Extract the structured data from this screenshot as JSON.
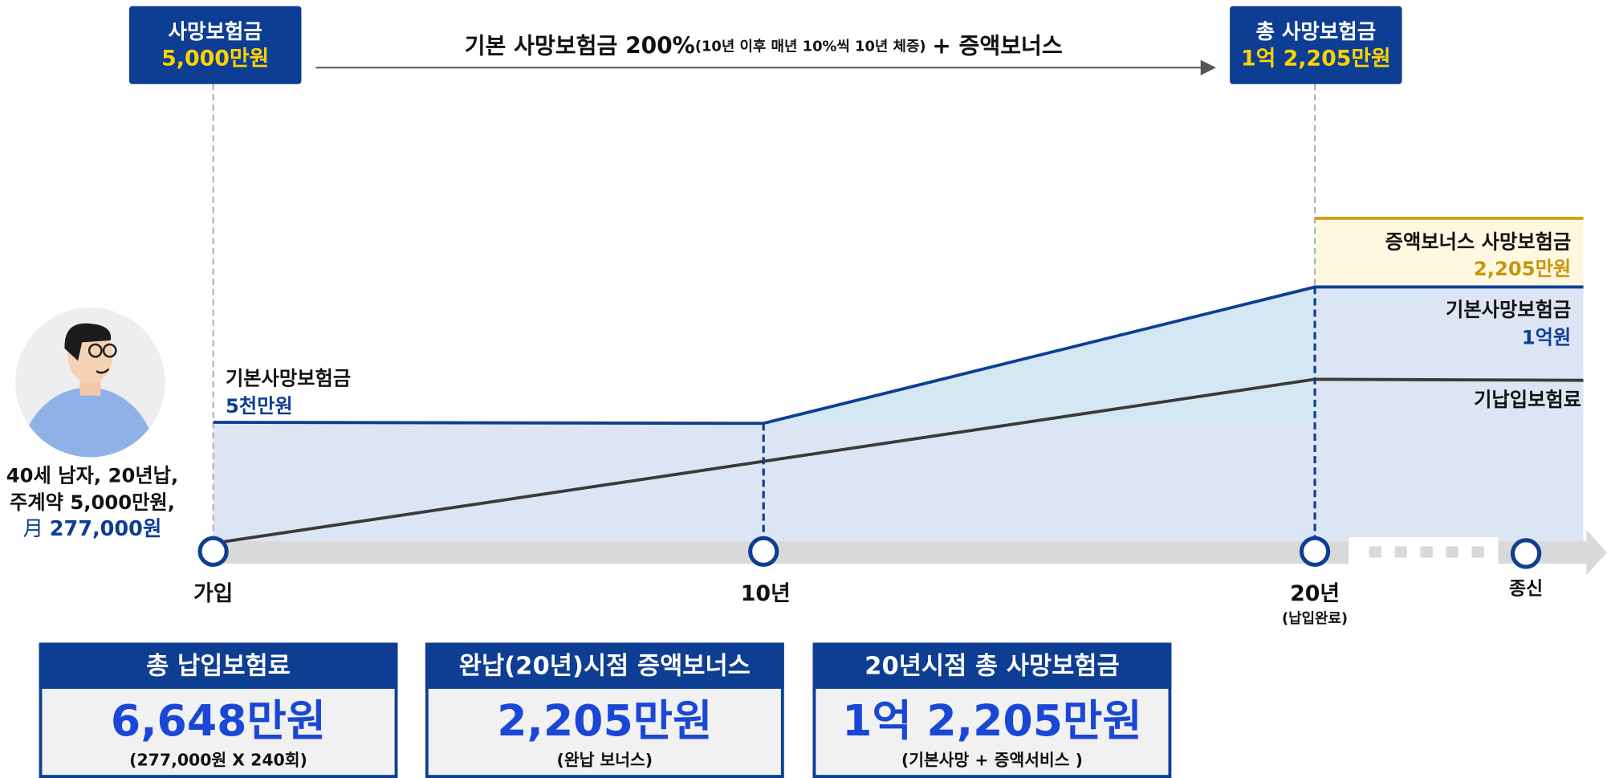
{
  "top_left_badge": {
    "label": "사망보험금",
    "amount": "5,000만원"
  },
  "top_arrow": {
    "main": "기본 사망보험금 200%",
    "note": "(10년 이후 매년 10%씩 10년 체증)",
    "suffix": "+ 증액보너스"
  },
  "top_right_badge": {
    "label": "총 사망보험금",
    "amount": "1억 2,205만원"
  },
  "person": {
    "line1": "40세 남자, 20년납,",
    "line2": "주계약 5,000만원,",
    "prefix": "月",
    "premium": "277,000원"
  },
  "chart_labels": {
    "base_start_label": "기본사망보험금",
    "base_start_amount": "5천만원",
    "bonus_label": "증액보너스 사망보험금",
    "bonus_amount": "2,205만원",
    "base_end_label": "기본사망보험금",
    "base_end_amount": "1억원",
    "paid_label": "기납입보험료"
  },
  "timeline": [
    {
      "label": "가입"
    },
    {
      "label": "10년"
    },
    {
      "label": "20년",
      "note": "(납입완료)"
    },
    {
      "label": "종신"
    }
  ],
  "summary_boxes": [
    {
      "title": "총 납입보험료",
      "value": "6,648만원",
      "note": "(277,000원 X 240회)"
    },
    {
      "title": "완납(20년)시점 증액보너스",
      "value": "2,205만원",
      "note": "(완납 보너스)"
    },
    {
      "title": "20년시점 총 사망보험금",
      "value": "1억 2,205만원",
      "note": "(기본사망 + 증액서비스 )"
    }
  ]
}
